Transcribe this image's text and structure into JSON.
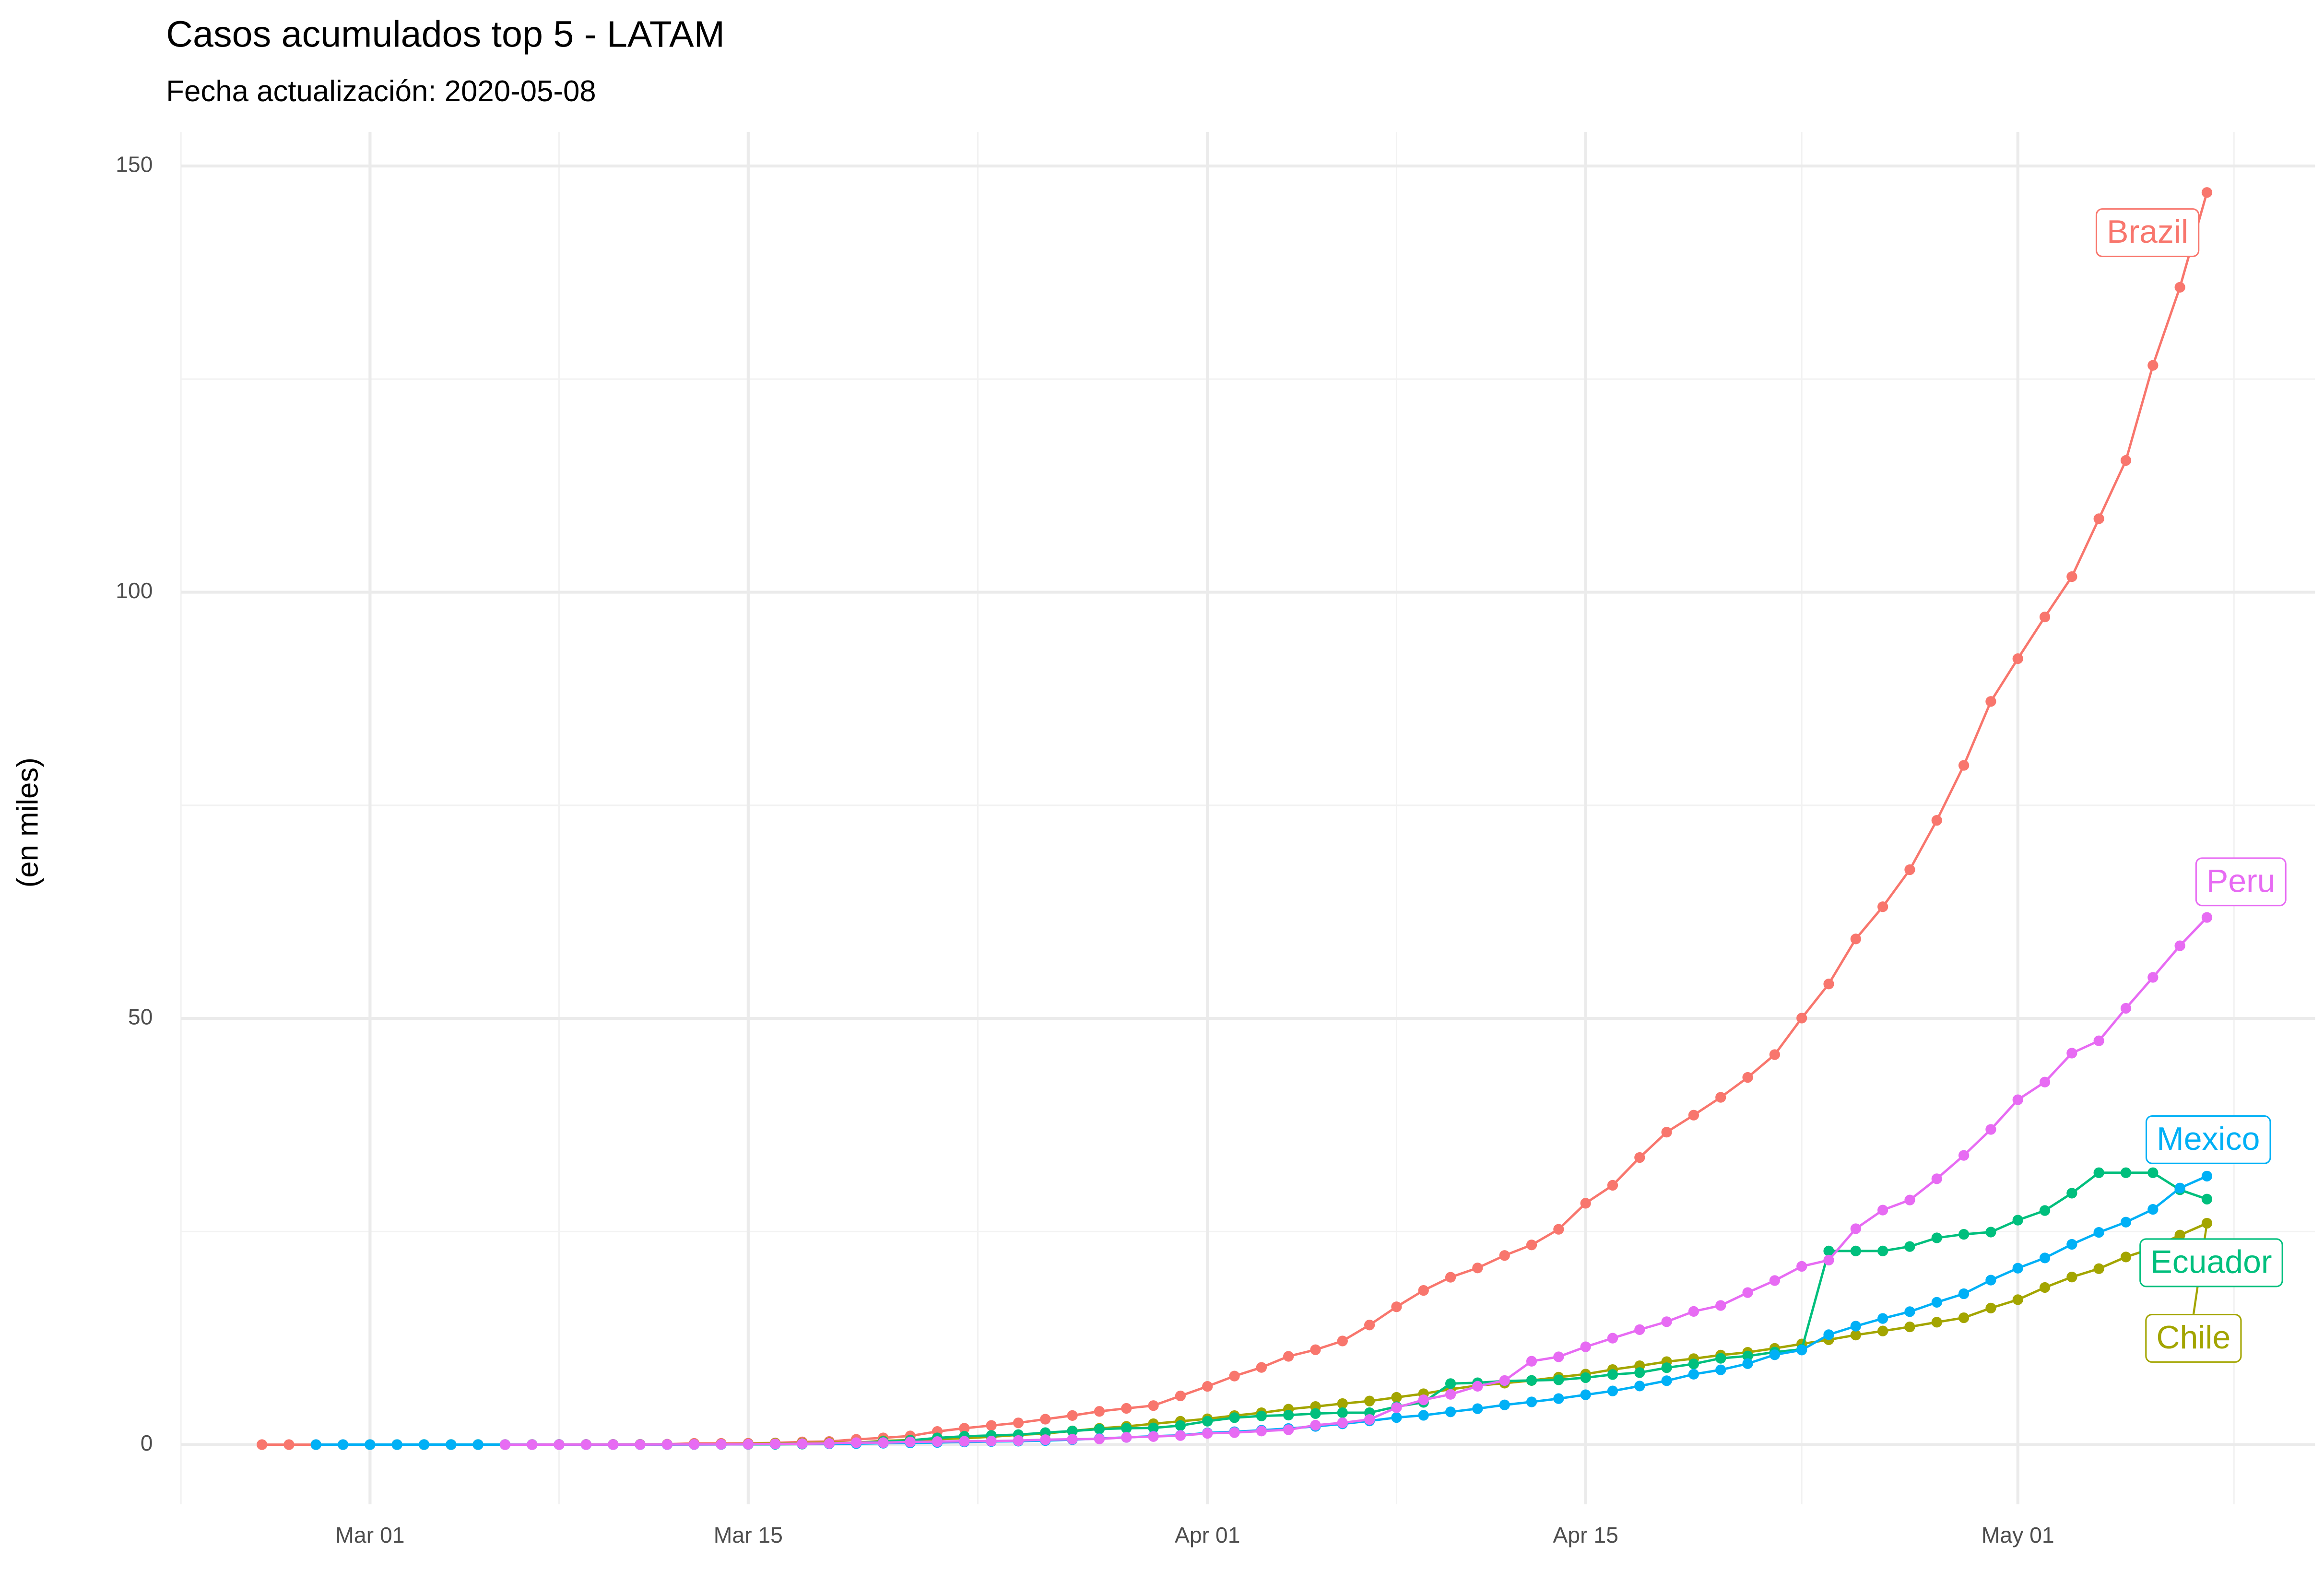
{
  "chart_data": {
    "type": "line",
    "title": "Casos acumulados top 5 - LATAM",
    "subtitle": "Fecha actualización: 2020-05-08",
    "y_label": "(en miles)",
    "grid": true,
    "xlim": [
      "Feb 23",
      "May 12"
    ],
    "xticks": [
      "Mar 01",
      "Mar 15",
      "Apr 01",
      "Apr 15",
      "May 01"
    ],
    "ylim": [
      -7,
      154
    ],
    "yticks": [
      0,
      50,
      100,
      150
    ],
    "x": [
      "Feb 26",
      "Feb 27",
      "Feb 28",
      "Feb 29",
      "Mar 01",
      "Mar 02",
      "Mar 03",
      "Mar 04",
      "Mar 05",
      "Mar 06",
      "Mar 07",
      "Mar 08",
      "Mar 09",
      "Mar 10",
      "Mar 11",
      "Mar 12",
      "Mar 13",
      "Mar 14",
      "Mar 15",
      "Mar 16",
      "Mar 17",
      "Mar 18",
      "Mar 19",
      "Mar 20",
      "Mar 21",
      "Mar 22",
      "Mar 23",
      "Mar 24",
      "Mar 25",
      "Mar 26",
      "Mar 27",
      "Mar 28",
      "Mar 29",
      "Mar 30",
      "Mar 31",
      "Apr 01",
      "Apr 02",
      "Apr 03",
      "Apr 04",
      "Apr 05",
      "Apr 06",
      "Apr 07",
      "Apr 08",
      "Apr 09",
      "Apr 10",
      "Apr 11",
      "Apr 12",
      "Apr 13",
      "Apr 14",
      "Apr 15",
      "Apr 16",
      "Apr 17",
      "Apr 18",
      "Apr 19",
      "Apr 20",
      "Apr 21",
      "Apr 22",
      "Apr 23",
      "Apr 24",
      "Apr 25",
      "Apr 26",
      "Apr 27",
      "Apr 28",
      "Apr 29",
      "Apr 30",
      "May 01",
      "May 02",
      "May 03",
      "May 04",
      "May 05",
      "May 06",
      "May 07",
      "May 08"
    ],
    "series": [
      {
        "name": "Brazil",
        "color": "#F8766D",
        "values": [
          0.001,
          0.001,
          0.001,
          0.002,
          0.002,
          0.002,
          0.002,
          0.004,
          0.004,
          0.013,
          0.013,
          0.02,
          0.025,
          0.031,
          0.038,
          0.052,
          0.151,
          0.151,
          0.162,
          0.2,
          0.321,
          0.372,
          0.621,
          0.793,
          1.021,
          1.546,
          1.924,
          2.247,
          2.554,
          2.985,
          3.417,
          3.904,
          4.256,
          4.579,
          5.717,
          6.836,
          8.044,
          9.056,
          10.36,
          11.13,
          12.161,
          14.034,
          16.17,
          18.092,
          19.638,
          20.727,
          22.192,
          23.43,
          25.262,
          28.32,
          30.425,
          33.682,
          36.658,
          38.654,
          40.743,
          43.079,
          45.757,
          50.036,
          54.043,
          59.324,
          63.1,
          67.446,
          73.235,
          79.685,
          87.187,
          92.202,
          97.1,
          101.826,
          108.62,
          115.455,
          126.611,
          135.773,
          146.894
        ]
      },
      {
        "name": "Chile",
        "color": "#A3A500",
        "values": [
          null,
          null,
          null,
          null,
          null,
          null,
          0.001,
          0.001,
          0.004,
          0.004,
          0.008,
          0.008,
          0.013,
          0.013,
          0.023,
          0.023,
          0.043,
          0.061,
          0.074,
          0.155,
          0.201,
          0.238,
          0.238,
          0.434,
          0.537,
          0.632,
          0.746,
          0.922,
          1.142,
          1.306,
          1.61,
          1.909,
          2.139,
          2.449,
          2.738,
          3.031,
          3.404,
          3.737,
          4.161,
          4.471,
          4.815,
          5.116,
          5.546,
          5.972,
          6.501,
          6.927,
          7.213,
          7.525,
          7.917,
          8.273,
          8.807,
          9.252,
          9.73,
          10.088,
          10.507,
          10.832,
          11.296,
          11.812,
          12.306,
          12.858,
          13.331,
          13.813,
          14.365,
          14.885,
          16.023,
          17.008,
          18.435,
          19.663,
          20.643,
          22.016,
          23.048,
          24.581,
          25.972
        ]
      },
      {
        "name": "Ecuador",
        "color": "#00BF7D",
        "values": [
          null,
          null,
          null,
          null,
          0.006,
          0.007,
          0.01,
          0.013,
          0.013,
          0.013,
          0.014,
          0.015,
          0.015,
          0.017,
          0.017,
          0.017,
          0.023,
          0.028,
          0.028,
          0.037,
          0.058,
          0.111,
          0.199,
          0.367,
          0.506,
          0.789,
          0.981,
          1.082,
          1.173,
          1.403,
          1.595,
          1.823,
          1.924,
          1.962,
          2.24,
          2.748,
          3.163,
          3.368,
          3.465,
          3.646,
          3.747,
          3.747,
          4.45,
          4.965,
          7.161,
          7.257,
          7.466,
          7.529,
          7.603,
          7.858,
          8.225,
          8.45,
          9.022,
          9.468,
          10.128,
          10.398,
          10.85,
          11.183,
          22.719,
          22.719,
          22.719,
          23.24,
          24.258,
          24.675,
          24.934,
          26.336,
          27.464,
          29.5,
          31.9,
          31.9,
          31.9,
          29.9,
          28.8
        ]
      },
      {
        "name": "Mexico",
        "color": "#00B0F6",
        "values": [
          null,
          null,
          0.001,
          0.004,
          0.005,
          0.005,
          0.005,
          0.005,
          0.005,
          0.006,
          0.006,
          0.007,
          0.007,
          0.007,
          0.007,
          0.012,
          0.015,
          0.026,
          0.041,
          0.053,
          0.082,
          0.093,
          0.118,
          0.164,
          0.203,
          0.251,
          0.316,
          0.367,
          0.405,
          0.475,
          0.585,
          0.717,
          0.848,
          0.993,
          1.094,
          1.378,
          1.51,
          1.688,
          1.89,
          2.143,
          2.439,
          2.785,
          3.181,
          3.441,
          3.844,
          4.219,
          4.661,
          5.014,
          5.399,
          5.847,
          6.297,
          6.875,
          7.497,
          8.261,
          8.772,
          9.501,
          10.544,
          11.1,
          12.9,
          13.9,
          14.8,
          15.6,
          16.7,
          17.7,
          19.3,
          20.7,
          21.9,
          23.5,
          24.9,
          26.1,
          27.6,
          30.1,
          31.5
        ]
      },
      {
        "name": "Peru",
        "color": "#E76BF3",
        "values": [
          null,
          null,
          null,
          null,
          null,
          null,
          null,
          null,
          null,
          0.001,
          0.001,
          0.007,
          0.009,
          0.009,
          0.011,
          0.022,
          0.028,
          0.038,
          0.043,
          0.086,
          0.117,
          0.145,
          0.234,
          0.234,
          0.318,
          0.363,
          0.395,
          0.416,
          0.48,
          0.58,
          0.635,
          0.671,
          0.852,
          0.95,
          1.065,
          1.323,
          1.414,
          1.595,
          1.746,
          2.281,
          2.561,
          2.954,
          4.342,
          5.256,
          5.897,
          6.848,
          7.519,
          9.784,
          10.303,
          11.475,
          12.491,
          13.489,
          14.42,
          15.628,
          16.325,
          17.837,
          19.25,
          20.914,
          21.648,
          25.331,
          27.517,
          28.699,
          31.19,
          33.931,
          36.976,
          40.459,
          42.534,
          45.928,
          47.372,
          51.189,
          54.817,
          58.526,
          61.847
        ]
      }
    ]
  }
}
